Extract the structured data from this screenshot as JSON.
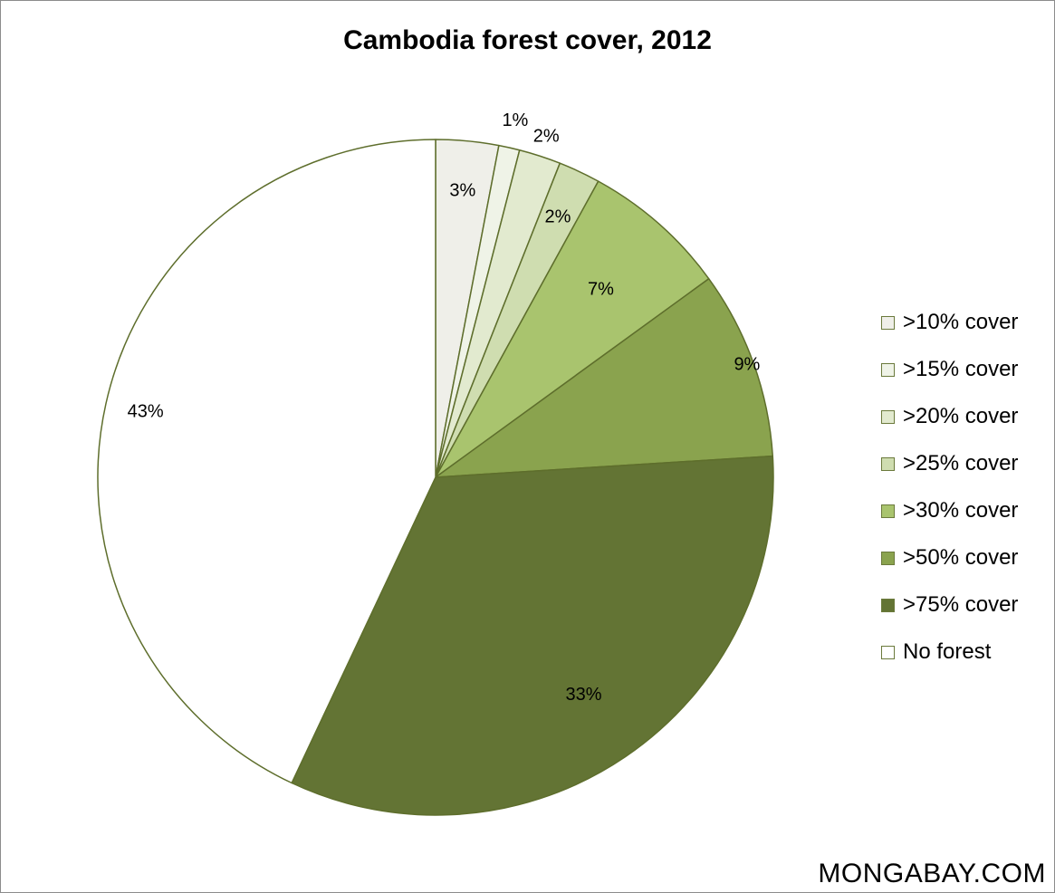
{
  "chart_data": {
    "type": "pie",
    "title": "Cambodia forest cover, 2012",
    "categories": [
      ">10% cover",
      ">15% cover",
      ">20% cover",
      ">25% cover",
      ">30% cover",
      ">50% cover",
      ">75% cover",
      "No forest"
    ],
    "values": [
      3,
      1,
      2,
      2,
      7,
      9,
      33,
      43
    ],
    "data_labels": [
      "3%",
      "1%",
      "2%",
      "2%",
      "7%",
      "9%",
      "33%",
      "43%"
    ],
    "colors": [
      "#efefe9",
      "#eff3e7",
      "#e2eacf",
      "#cfddb0",
      "#a9c46e",
      "#8aa34e",
      "#637434",
      "#ffffff"
    ],
    "edge_color": "#5e6e2c",
    "start_angle": "12 o'clock",
    "direction": "clockwise",
    "legend_position": "right"
  },
  "watermark": "MONGABAY.COM"
}
